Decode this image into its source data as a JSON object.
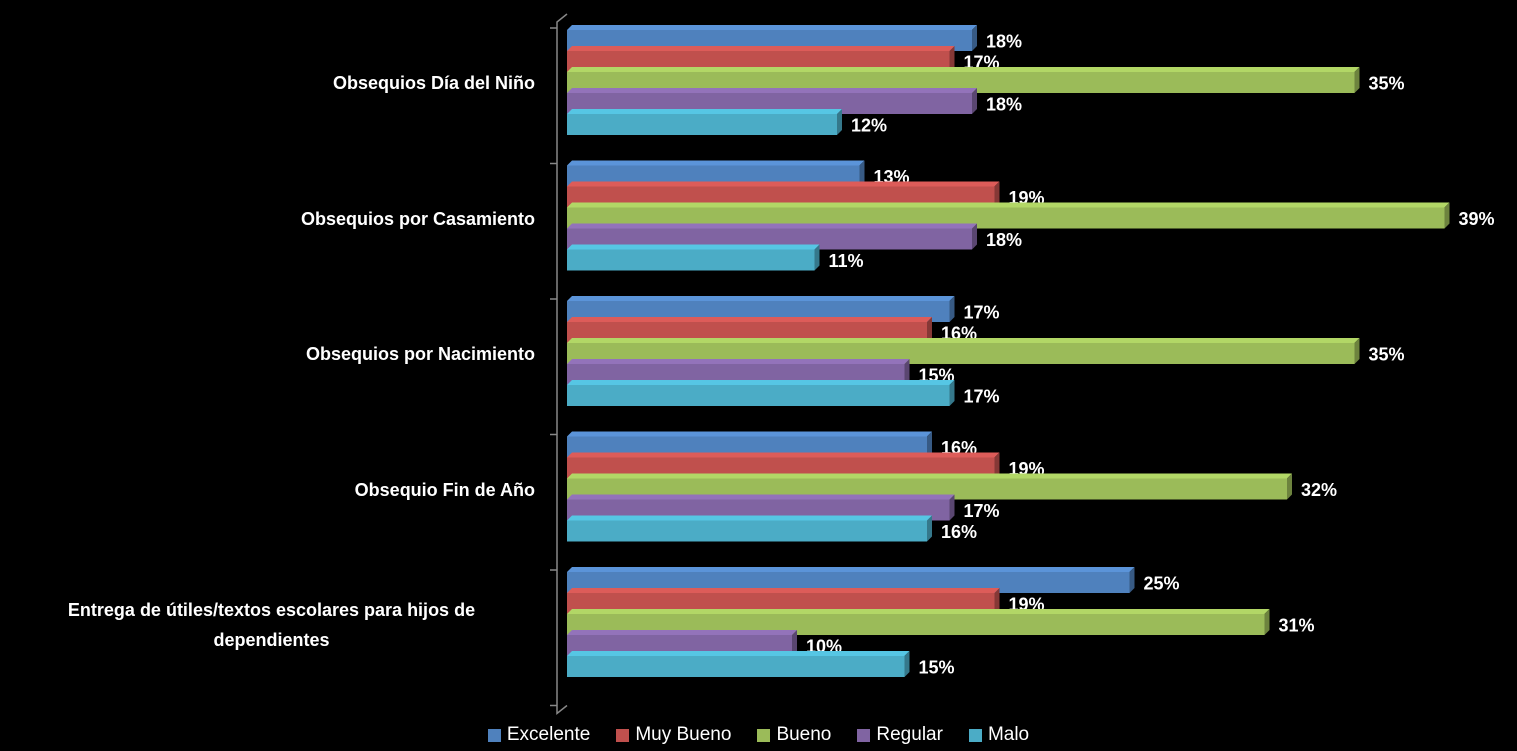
{
  "chart_data": {
    "type": "bar",
    "orientation": "horizontal",
    "categories": [
      "Obsequios Día del Niño",
      "Obsequios por Casamiento",
      "Obsequios por Nacimiento",
      "Obsequio Fin de Año",
      "Entrega de útiles/textos escolares para hijos de dependientes"
    ],
    "series": [
      {
        "name": "Excelente",
        "color": "#4f81bd",
        "values": [
          18,
          13,
          17,
          16,
          25
        ],
        "value_labels": [
          "18%",
          "13%",
          "17%",
          "16%",
          "25%"
        ]
      },
      {
        "name": "Muy Bueno",
        "color": "#c0504d",
        "values": [
          17,
          19,
          16,
          19,
          19
        ],
        "value_labels": [
          "17%",
          "19%",
          "16%",
          "19%",
          "19%"
        ]
      },
      {
        "name": "Bueno",
        "color": "#9bbb59",
        "values": [
          35,
          39,
          35,
          32,
          31
        ],
        "value_labels": [
          "35%",
          "39%",
          "35%",
          "32%",
          "31%"
        ]
      },
      {
        "name": "Regular",
        "color": "#8064a2",
        "values": [
          18,
          18,
          15,
          17,
          10
        ],
        "value_labels": [
          "18%",
          "18%",
          "15%",
          "17%",
          "10%"
        ]
      },
      {
        "name": "Malo",
        "color": "#4bacc6",
        "values": [
          12,
          11,
          17,
          16,
          15
        ],
        "value_labels": [
          "12%",
          "11%",
          "17%",
          "16%",
          "15%"
        ]
      }
    ],
    "legend": "bottom"
  }
}
